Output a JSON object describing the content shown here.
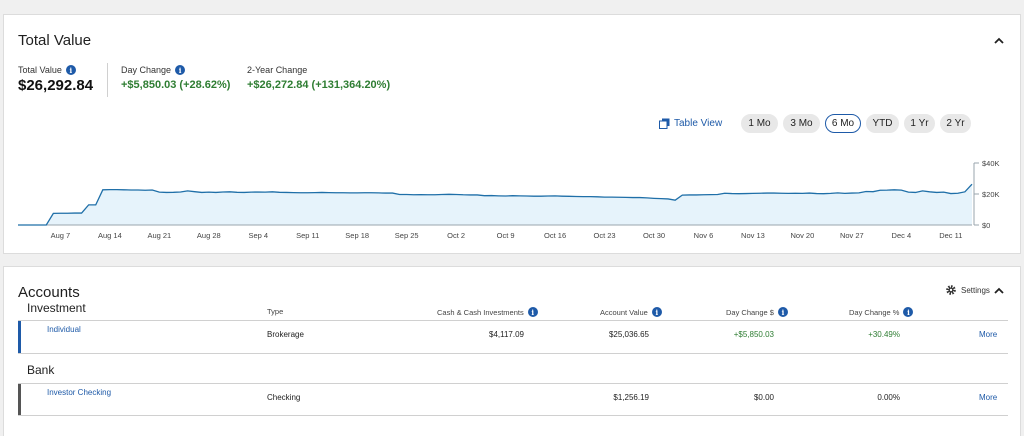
{
  "total_value_card": {
    "title": "Total Value",
    "metrics": {
      "total_value": {
        "label": "Total Value",
        "value": "$26,292.84"
      },
      "day_change": {
        "label": "Day Change",
        "value": "+$5,850.03 (+28.62%)"
      },
      "two_year_change": {
        "label": "2-Year Change",
        "value": "+$26,272.84 (+131,364.20%)"
      }
    },
    "table_view_label": "Table View",
    "range_buttons": [
      "1 Mo",
      "3 Mo",
      "6 Mo",
      "YTD",
      "1 Yr",
      "2 Yr"
    ],
    "selected_range": "6 Mo"
  },
  "chart_data": {
    "type": "area",
    "x_tick_labels": [
      "Aug 7",
      "Aug 14",
      "Aug 21",
      "Aug 28",
      "Sep 4",
      "Sep 11",
      "Sep 18",
      "Sep 25",
      "Oct 2",
      "Oct 9",
      "Oct 16",
      "Oct 23",
      "Oct 30",
      "Nov 6",
      "Nov 13",
      "Nov 20",
      "Nov 27",
      "Dec 4",
      "Dec 11"
    ],
    "y_tick_labels": [
      "$40K",
      "$20K",
      "$0"
    ],
    "y_ticks": [
      40000,
      20000,
      0
    ],
    "ylim": [
      0,
      40000
    ],
    "x_start": "Aug 1",
    "x_end": "Dec 15",
    "values": [
      0,
      0,
      0,
      0,
      0,
      7500,
      7600,
      7600,
      7700,
      7700,
      13000,
      13000,
      22700,
      22800,
      22800,
      22700,
      22600,
      22600,
      22400,
      22600,
      21200,
      21000,
      21100,
      21300,
      22000,
      21500,
      21000,
      21200,
      21000,
      21300,
      21400,
      21100,
      21000,
      21200,
      21300,
      21200,
      21400,
      21100,
      21000,
      20900,
      20800,
      20800,
      20900,
      21000,
      20900,
      20800,
      20800,
      20700,
      20700,
      20800,
      20800,
      20700,
      20600,
      20600,
      19700,
      19700,
      19500,
      19600,
      19500,
      19500,
      19700,
      19800,
      19700,
      19500,
      19400,
      19400,
      18900,
      19000,
      18800,
      18700,
      18900,
      18800,
      18700,
      18600,
      18600,
      18700,
      18800,
      18600,
      18500,
      18400,
      18300,
      18300,
      18200,
      18000,
      18000,
      17900,
      17800,
      17700,
      17700,
      17500,
      17200,
      17000,
      16800,
      16000,
      19300,
      19400,
      19400,
      19500,
      19600,
      19700,
      20500,
      20300,
      20200,
      20300,
      20400,
      20500,
      20600,
      20600,
      20500,
      20400,
      20500,
      20400,
      20600,
      20300,
      20200,
      20400,
      20700,
      20400,
      20600,
      20700,
      21600,
      21500,
      22400,
      22500,
      22700,
      22500,
      21200,
      21000,
      22000,
      21400,
      21000,
      21200,
      20300,
      20500,
      21400,
      26300
    ],
    "grid": false,
    "line_color": "#1f6fa8",
    "fill_color": "#e6f3fb"
  },
  "accounts_card": {
    "title": "Accounts",
    "settings_label": "Settings",
    "investment_section": "Investment",
    "bank_section": "Bank",
    "columns": {
      "type": "Type",
      "cash": "Cash & Cash Investments",
      "account_value": "Account Value",
      "day_change_dollar": "Day Change $",
      "day_change_pct": "Day Change %"
    },
    "rows": [
      {
        "name": "Individual",
        "type": "Brokerage",
        "cash": "$4,117.09",
        "account_value": "$25,036.65",
        "day_change_dollar": "+$5,850.03",
        "day_change_pct": "+30.49%",
        "more": "More",
        "bar_color": "#1e5aa8"
      },
      {
        "name": "Investor Checking",
        "type": "Checking",
        "cash": "",
        "account_value": "$1,256.19",
        "day_change_dollar": "$0.00",
        "day_change_pct": "0.00%",
        "more": "More",
        "bar_color": "#555555"
      }
    ]
  },
  "colors": {
    "accent": "#1e5aa8",
    "positive": "#2e7d32"
  }
}
